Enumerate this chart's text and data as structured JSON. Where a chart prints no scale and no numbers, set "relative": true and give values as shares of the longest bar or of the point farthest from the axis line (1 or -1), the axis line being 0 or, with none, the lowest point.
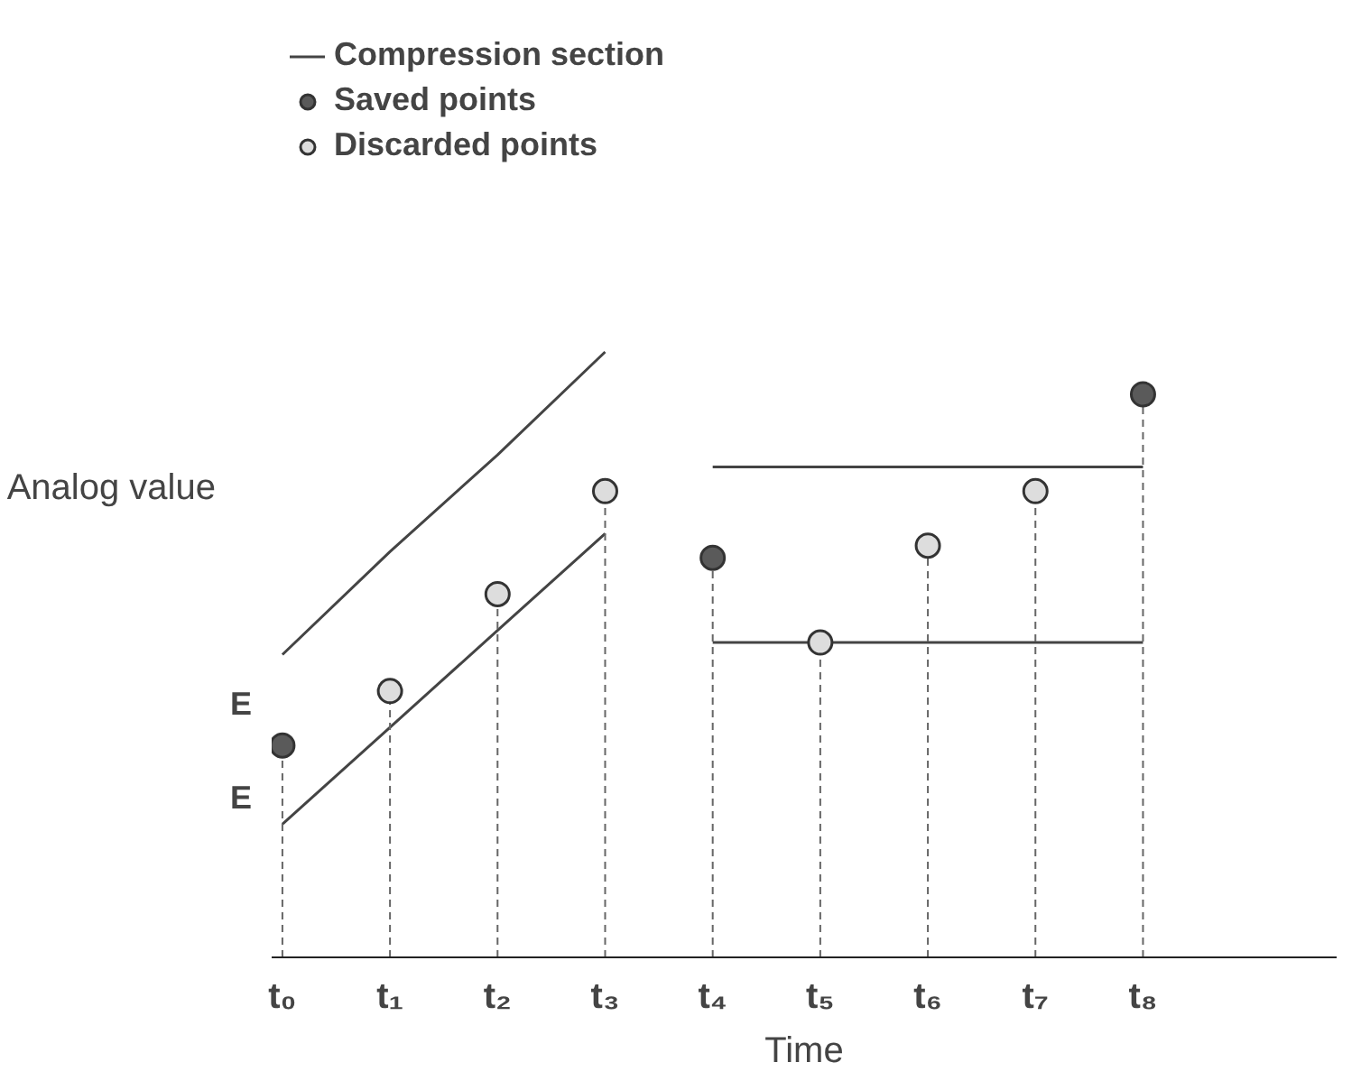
{
  "chart_data": {
    "type": "lollipop",
    "xlabel": "Time",
    "ylabel": "Analog value",
    "relative": true,
    "categories": [
      "t₀",
      "t₁",
      "t₂",
      "t₃",
      "t₄",
      "t₅",
      "t₆",
      "t₇",
      "t₈"
    ],
    "series": [
      {
        "name": "Compression section",
        "type": "line",
        "color": "#444444",
        "line_style": "solid",
        "marker": "none",
        "values": [
          0.5,
          0.67,
          0.83,
          1.0,
          null,
          null,
          null,
          null,
          null
        ]
      },
      {
        "type": "line",
        "color": "#444444",
        "line_style": "solid",
        "marker": "none",
        "values": [
          0.22,
          0.38,
          0.54,
          0.7,
          null,
          null,
          null,
          null,
          null
        ]
      },
      {
        "type": "line",
        "color": "#444444",
        "line_style": "solid",
        "marker": "none",
        "values": [
          null,
          null,
          null,
          null,
          0.81,
          0.81,
          0.81,
          0.81,
          0.81
        ]
      },
      {
        "type": "line",
        "color": "#444444",
        "line_style": "solid",
        "marker": "none",
        "values": [
          null,
          null,
          null,
          null,
          0.52,
          0.52,
          0.52,
          0.52,
          0.52
        ]
      },
      {
        "name": "Saved points",
        "color": "#5a5a5a",
        "marker": "circle",
        "line_style": "dashed",
        "values": [
          0.35,
          null,
          null,
          null,
          0.66,
          null,
          null,
          null,
          0.93
        ]
      },
      {
        "name": "Discarded points",
        "color": "#dddddd",
        "marker": "circle",
        "line_style": "dashed",
        "values": [
          null,
          0.44,
          0.6,
          0.77,
          null,
          0.52,
          0.68,
          0.77,
          null
        ]
      }
    ],
    "annotations": [
      "E",
      "E"
    ],
    "grid": false,
    "legend": "top left",
    "tick_labels": "x"
  }
}
